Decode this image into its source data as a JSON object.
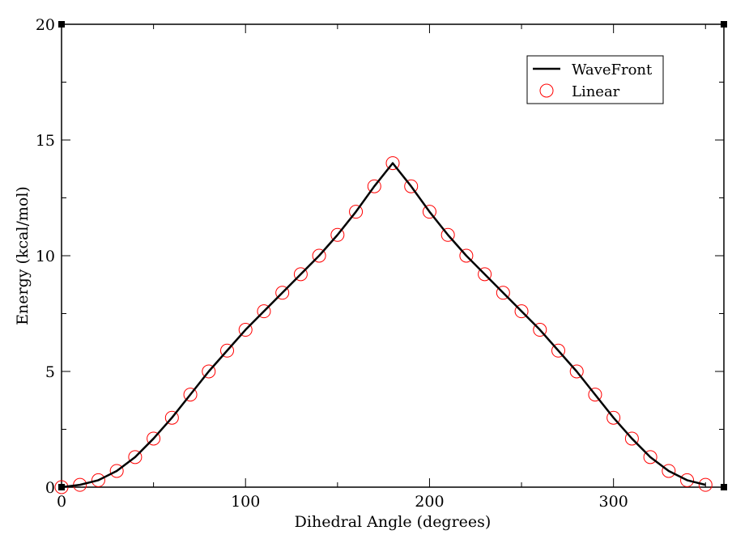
{
  "chart_data": {
    "type": "line",
    "xlabel": "Dihedral Angle (degrees)",
    "ylabel": "Energy (kcal/mol)",
    "xlim": [
      0,
      360
    ],
    "ylim": [
      0,
      20
    ],
    "x_ticks": [
      0,
      100,
      200,
      300
    ],
    "x_tick_labels": [
      "0",
      "100",
      "200",
      "300"
    ],
    "y_ticks": [
      0,
      5,
      10,
      15,
      20
    ],
    "y_tick_labels": [
      "0",
      "5",
      "10",
      "15",
      "20"
    ],
    "legend_position": "top-right",
    "series": [
      {
        "name": "WaveFront",
        "style": "line",
        "color": "#000000",
        "x": [
          0,
          10,
          20,
          30,
          40,
          50,
          60,
          70,
          80,
          90,
          100,
          110,
          120,
          130,
          140,
          150,
          160,
          170,
          180,
          190,
          200,
          210,
          220,
          230,
          240,
          250,
          260,
          270,
          280,
          290,
          300,
          310,
          320,
          330,
          340,
          350
        ],
        "y": [
          0.0,
          0.1,
          0.3,
          0.7,
          1.3,
          2.1,
          3.0,
          4.0,
          5.0,
          5.9,
          6.8,
          7.6,
          8.4,
          9.2,
          10.0,
          10.9,
          11.9,
          13.0,
          14.0,
          13.0,
          11.9,
          10.9,
          10.0,
          9.2,
          8.4,
          7.6,
          6.8,
          5.9,
          5.0,
          4.0,
          3.0,
          2.1,
          1.3,
          0.7,
          0.3,
          0.1
        ]
      },
      {
        "name": "Linear",
        "style": "markers",
        "marker": "open-circle",
        "color": "#ff0000",
        "x": [
          0,
          10,
          20,
          30,
          40,
          50,
          60,
          70,
          80,
          90,
          100,
          110,
          120,
          130,
          140,
          150,
          160,
          170,
          180,
          190,
          200,
          210,
          220,
          230,
          240,
          250,
          260,
          270,
          280,
          290,
          300,
          310,
          320,
          330,
          340,
          350
        ],
        "y": [
          0.0,
          0.1,
          0.3,
          0.7,
          1.3,
          2.1,
          3.0,
          4.0,
          5.0,
          5.9,
          6.8,
          7.6,
          8.4,
          9.2,
          10.0,
          10.9,
          11.9,
          13.0,
          14.0,
          13.0,
          11.9,
          10.9,
          10.0,
          9.2,
          8.4,
          7.6,
          6.8,
          5.9,
          5.0,
          4.0,
          3.0,
          2.1,
          1.3,
          0.7,
          0.3,
          0.1
        ]
      }
    ]
  }
}
